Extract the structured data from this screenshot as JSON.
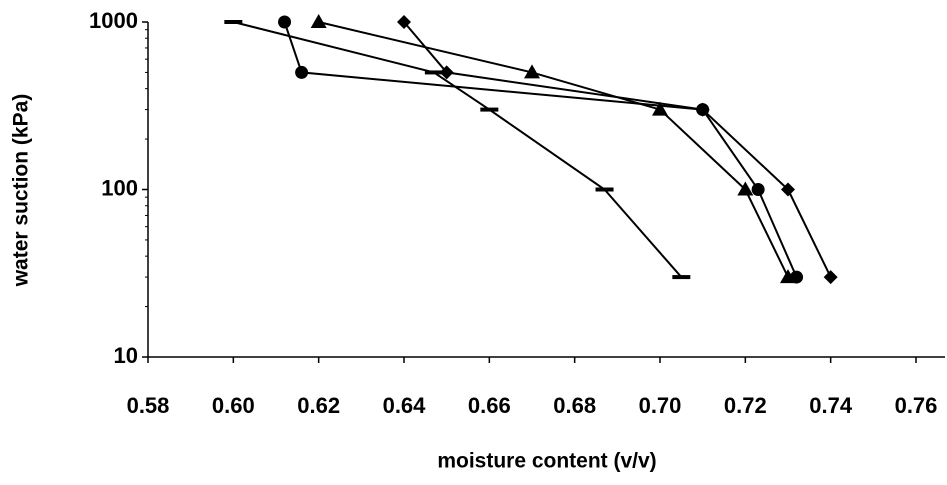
{
  "chart_data": {
    "type": "line",
    "x_label": "moisture content (v/v)",
    "y_label": "water suction (kPa)",
    "log_y": true,
    "xlim": [
      0.58,
      0.76
    ],
    "xticks": [
      {
        "value": 0.58,
        "label": "0.58"
      },
      {
        "value": 0.6,
        "label": "0.60"
      },
      {
        "value": 0.62,
        "label": "0.62"
      },
      {
        "value": 0.64,
        "label": "0.64"
      },
      {
        "value": 0.66,
        "label": "0.66"
      },
      {
        "value": 0.68,
        "label": "0.68"
      },
      {
        "value": 0.7,
        "label": "0.70"
      },
      {
        "value": 0.72,
        "label": "0.72"
      },
      {
        "value": 0.74,
        "label": "0.74"
      },
      {
        "value": 0.76,
        "label": "0.76"
      }
    ],
    "ylim": [
      10,
      1000
    ],
    "yticks": [
      10,
      100,
      1000
    ],
    "series": [
      {
        "marker": "diamond",
        "color": "#000000",
        "x": [
          0.64,
          0.65,
          0.71,
          0.73,
          0.74
        ],
        "values": [
          1000,
          500,
          300,
          100,
          30
        ]
      },
      {
        "marker": "triangle",
        "color": "#000000",
        "x": [
          0.62,
          0.67,
          0.7,
          0.72,
          0.73
        ],
        "values": [
          1000,
          500,
          300,
          100,
          30
        ]
      },
      {
        "marker": "circle",
        "color": "#000000",
        "x": [
          0.612,
          0.616,
          0.71,
          0.723,
          0.732
        ],
        "values": [
          1000,
          500,
          300,
          100,
          30
        ]
      },
      {
        "marker": "dash",
        "color": "#000000",
        "x": [
          0.6,
          0.647,
          0.66,
          0.687,
          0.705
        ],
        "values": [
          1000,
          500,
          300,
          100,
          30
        ]
      }
    ]
  }
}
